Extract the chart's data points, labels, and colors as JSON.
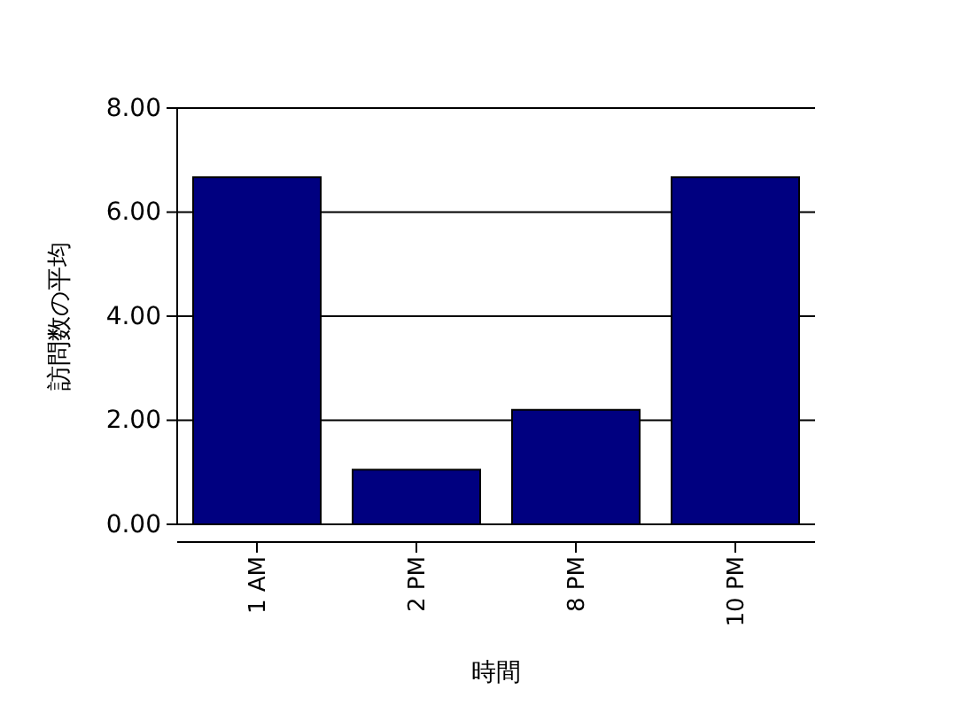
{
  "chart_data": {
    "type": "bar",
    "xlabel": "時間",
    "ylabel": "訪問数の平均",
    "categories": [
      "1 AM",
      "2 PM",
      "8 PM",
      "10 PM"
    ],
    "values": [
      6.67,
      1.05,
      2.2,
      6.67
    ],
    "color": "#000080",
    "ylim": [
      0,
      8
    ],
    "yticks": [
      {
        "value": 0,
        "label": "0.00"
      },
      {
        "value": 2,
        "label": "2.00"
      },
      {
        "value": 4,
        "label": "4.00"
      },
      {
        "value": 6,
        "label": "6.00"
      },
      {
        "value": 8,
        "label": "8.00"
      }
    ],
    "grid": "y"
  }
}
